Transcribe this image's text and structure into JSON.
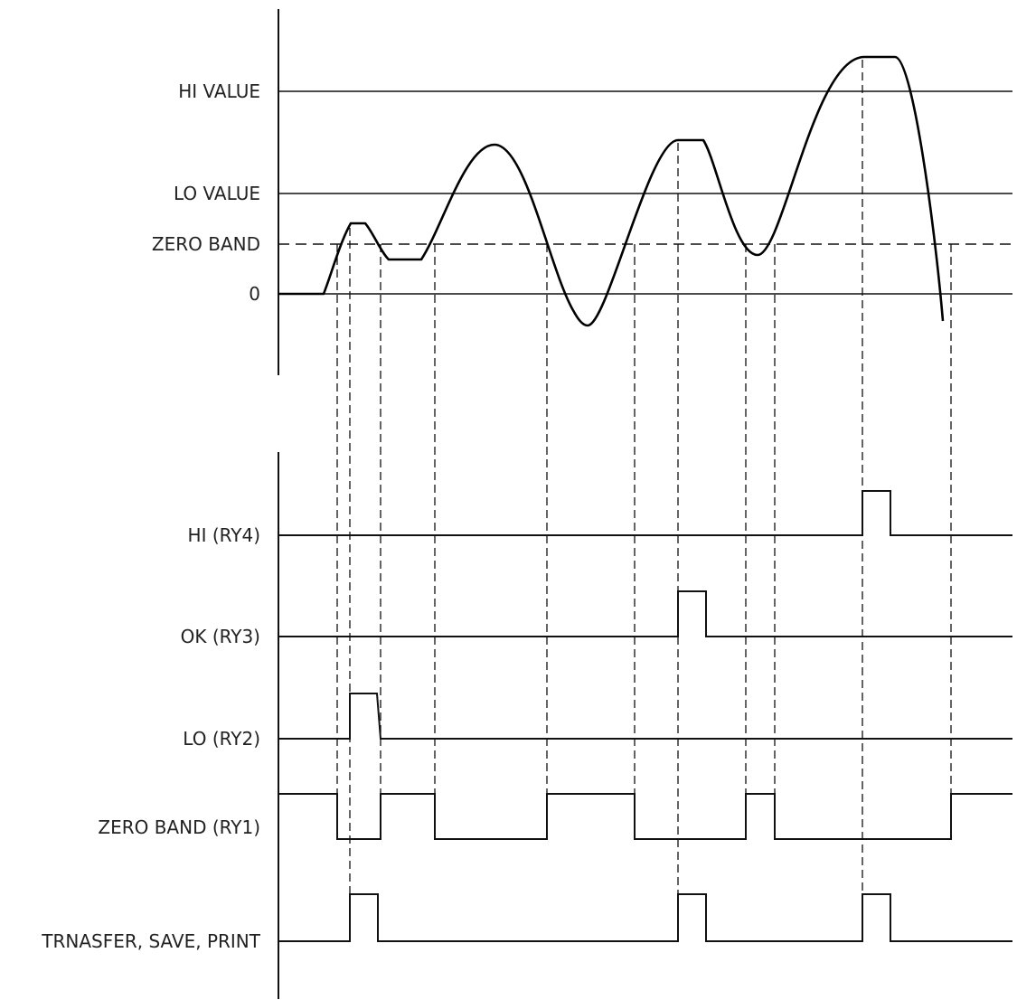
{
  "analog": {
    "levels": [
      {
        "key": "hi",
        "label": "HI VALUE",
        "style": "solid"
      },
      {
        "key": "lo",
        "label": "LO VALUE",
        "style": "solid"
      },
      {
        "key": "zb",
        "label": "ZERO BAND",
        "style": "dashed"
      },
      {
        "key": "zero",
        "label": "0",
        "style": "solid"
      }
    ]
  },
  "digital": {
    "signals": [
      {
        "key": "ry4",
        "label": "HI (RY4)",
        "initial": 0
      },
      {
        "key": "ry3",
        "label": "OK (RY3)",
        "initial": 0
      },
      {
        "key": "ry2",
        "label": "LO (RY2)",
        "initial": 0
      },
      {
        "key": "ry1",
        "label": "ZERO BAND (RY1)",
        "initial": 1
      },
      {
        "key": "tsp",
        "label": "TRNASFER, SAVE, PRINT",
        "initial": 0
      }
    ]
  }
}
